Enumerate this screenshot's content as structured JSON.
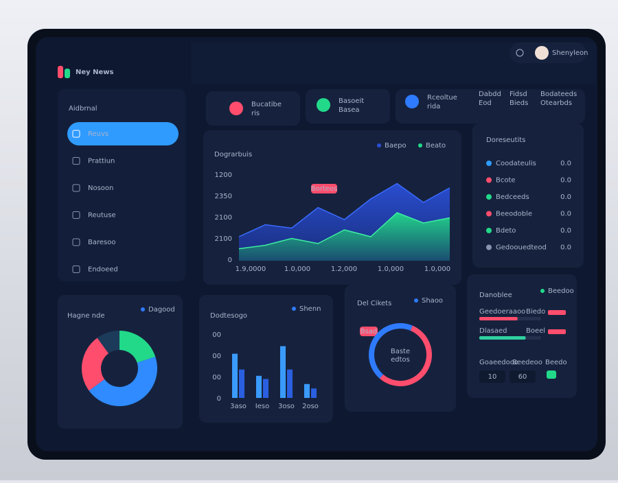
{
  "app": {
    "logo": "Ney News",
    "section": "Aidbrnal",
    "menu": [
      "Reuvs",
      "Prattiun",
      "Nosoon",
      "Reutuse",
      "Baresoo",
      "Endoeed"
    ],
    "user": "Shenyleon"
  },
  "stats": [
    {
      "title": "Bucatibe",
      "sub": "ris",
      "color": "#ff4d6d"
    },
    {
      "title": "Basoeit",
      "sub": "Basea",
      "color": "#22d98a"
    },
    {
      "title": "Rceoltue",
      "sub": "rida",
      "color": "#2f7bff"
    }
  ],
  "stat_links": [
    "Dabdd",
    "Fidsd",
    "Bodateeds",
    "Eod",
    "Bieds",
    "Otearbds"
  ],
  "area_chart": {
    "type": "area",
    "title": "Dograrbuis",
    "badge": "Borteos",
    "ylabels": [
      "1200",
      "2350",
      "2100",
      "2100",
      "0"
    ],
    "xlabels": [
      "1.9,0000",
      "1.0,000",
      "1.2,000",
      "1.0,000",
      "1.0,000"
    ],
    "ylim": [
      0,
      100
    ],
    "series": [
      {
        "name": "Baepo",
        "color": "#2a4fd6",
        "values": [
          28,
          42,
          38,
          62,
          48,
          72,
          90,
          68,
          85
        ]
      },
      {
        "name": "Beato",
        "color": "#22d98a",
        "values": [
          14,
          18,
          26,
          20,
          36,
          28,
          56,
          44,
          50
        ]
      }
    ]
  },
  "list": {
    "title": "Doreseutits",
    "items": [
      {
        "label": "Coodateulis",
        "value": "0.0",
        "color": "#2f9bff"
      },
      {
        "label": "Bcote",
        "value": "0.0",
        "color": "#ff4d6d"
      },
      {
        "label": "Bedceeds",
        "value": "0.0",
        "color": "#22d98a"
      },
      {
        "label": "Beeodoble",
        "value": "0.0",
        "color": "#ff4d6d"
      },
      {
        "label": "Bdeto",
        "value": "0.0",
        "color": "#22d98a"
      },
      {
        "label": "Gedoouedteod",
        "value": "0.0",
        "color": "#8a94b0"
      }
    ]
  },
  "donut": {
    "type": "pie",
    "title": "Hagne nde",
    "legend": "Dagood",
    "values": [
      20,
      45,
      25,
      10
    ],
    "colors": [
      "#22d98a",
      "#2f8bff",
      "#ff4d6d",
      "#1c3a5a"
    ]
  },
  "bar_chart": {
    "type": "bar",
    "title": "Dodtesogo",
    "legend": "Shenn",
    "ylabels": [
      "00",
      "00",
      "00",
      "0"
    ],
    "categories": [
      "3aso",
      "Ieso",
      "3oso",
      "2oso"
    ],
    "ylim": [
      0,
      100
    ],
    "series": [
      {
        "color": "#3a9bff",
        "values": [
          70,
          35,
          82,
          22
        ]
      },
      {
        "color": "#2a5fe0",
        "values": [
          45,
          30,
          45,
          15
        ]
      }
    ]
  },
  "ring": {
    "type": "pie",
    "title": "Del Cikets",
    "legend": "Shaoo",
    "tag": "Bsad",
    "center": [
      "Baste",
      "edtos"
    ],
    "values": [
      55,
      45
    ],
    "colors": [
      "#ff4d6d",
      "#2f7bff"
    ]
  },
  "progress": {
    "title": "Danoblee",
    "legend": "Beedoo",
    "rows": [
      {
        "label": "Geedoeraaoo",
        "tag": "Biedo",
        "value": 62,
        "color": "#ff4d6d"
      },
      {
        "label": "Dlasaed",
        "tag": "Boeel",
        "value": 75,
        "color": "#2fd0a0"
      }
    ],
    "footer": [
      "Goaeedooo",
      "Beedeoo",
      "Beedo"
    ],
    "buttons": [
      "10",
      "60"
    ]
  }
}
